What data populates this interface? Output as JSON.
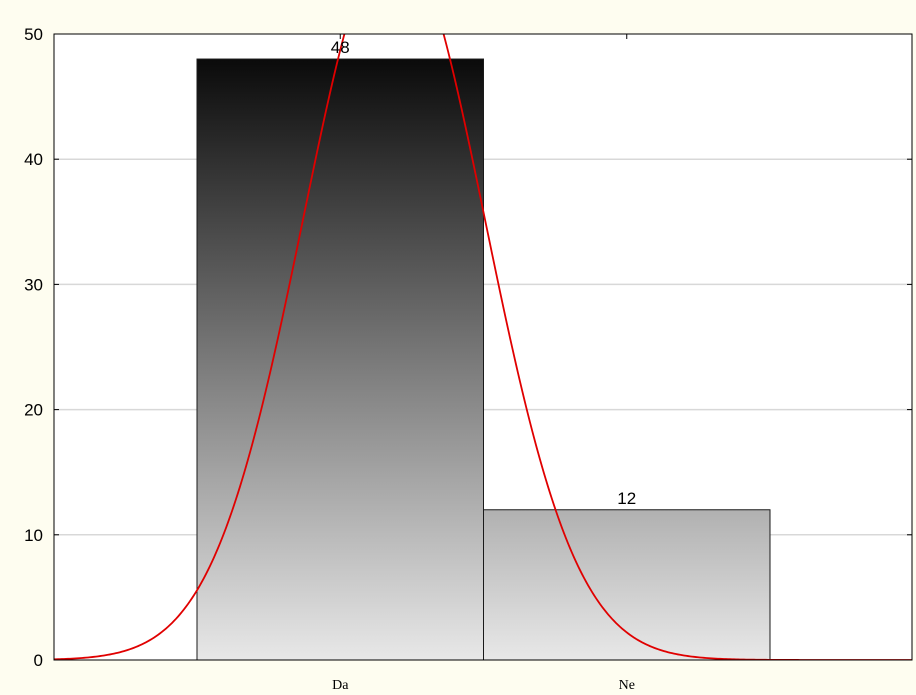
{
  "chart_data": {
    "type": "bar",
    "title": "",
    "xlabel": "",
    "ylabel": "",
    "categories": [
      "Da",
      "Ne"
    ],
    "values": [
      48,
      12
    ],
    "data_labels": [
      "48",
      "12"
    ],
    "ylim": [
      0,
      50
    ],
    "yticks": [
      0,
      10,
      20,
      30,
      40,
      50
    ],
    "grid": true,
    "legend": "none",
    "bar_fill": "vertical gradient, dark at top to light gray at bottom",
    "overlay": {
      "type": "normal fit curve",
      "color": "#e00000"
    },
    "colors": {
      "background": "#fefdf0",
      "plot_area": "#ffffff",
      "gridline": "#d8d8d8",
      "axis": "#000000",
      "bar_top": "#0a0a0a",
      "bar_bottom": "#e8e8e8",
      "curve": "#e00000"
    }
  }
}
